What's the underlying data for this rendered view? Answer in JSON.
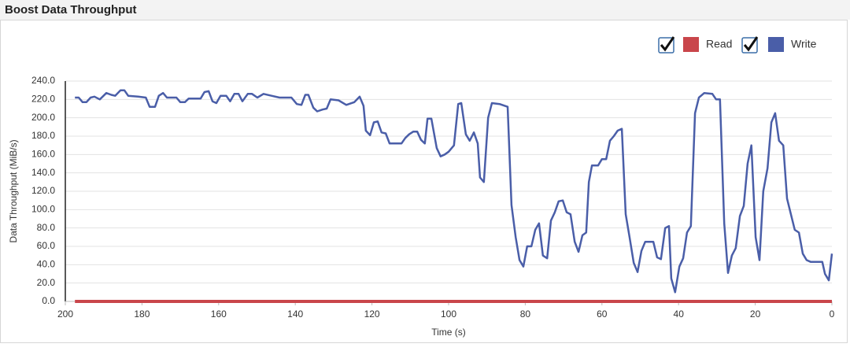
{
  "chart_data": {
    "type": "line",
    "title": "Boost Data Throughput",
    "x_label": "Time (s)",
    "y_label": "Data Throughput (MiB/s)",
    "xlim": [
      200,
      0
    ],
    "xticks": [
      200,
      180,
      160,
      140,
      120,
      100,
      80,
      60,
      40,
      20,
      0
    ],
    "ylim": [
      0,
      240
    ],
    "yticks": [
      {
        "value": 0,
        "label": "0.0"
      },
      {
        "value": 20,
        "label": "20.0"
      },
      {
        "value": 40,
        "label": "40.0"
      },
      {
        "value": 60,
        "label": "60.0"
      },
      {
        "value": 80,
        "label": "80.0"
      },
      {
        "value": 100,
        "label": "100.0"
      },
      {
        "value": 120,
        "label": "120.0"
      },
      {
        "value": 140,
        "label": "140.0"
      },
      {
        "value": 160,
        "label": "160.0"
      },
      {
        "value": 180,
        "label": "180.0"
      },
      {
        "value": 200,
        "label": "200.0"
      },
      {
        "value": 220,
        "label": "220.0"
      },
      {
        "value": 240,
        "label": "240.0"
      }
    ],
    "grid": true,
    "legend": "top-right",
    "x": [
      197.5,
      196.5,
      195.5,
      194.5,
      193.4,
      192.4,
      191,
      189.3,
      188,
      187,
      185.6,
      184.6,
      183.6,
      181,
      179,
      178,
      176.6,
      175.6,
      174.5,
      173.5,
      171,
      170,
      168.8,
      167.8,
      164.7,
      163.7,
      162.6,
      161.6,
      160.6,
      159.5,
      158,
      157,
      155.9,
      154.8,
      153.8,
      152.4,
      151.3,
      149.9,
      148.3,
      146.2,
      144.1,
      141,
      139.6,
      138.4,
      137.4,
      136.6,
      135.3,
      134.3,
      132.9,
      131.8,
      130.8,
      128.7,
      126.7,
      124.6,
      123.2,
      122.2,
      121.6,
      120.5,
      119.5,
      118.5,
      117.5,
      116.4,
      115.4,
      112.3,
      111.3,
      110.3,
      109.2,
      108.2,
      107.2,
      106.2,
      105.5,
      104.5,
      103.1,
      102.1,
      101,
      100,
      98.6,
      97.5,
      96.7,
      95.5,
      94.5,
      93.4,
      92.4,
      91.8,
      90.8,
      89.7,
      88.7,
      86.7,
      84.6,
      83.6,
      82.5,
      81.5,
      80.5,
      79.5,
      78.4,
      77.4,
      76.4,
      75.4,
      74.3,
      73.3,
      72.3,
      71.3,
      70.2,
      69.2,
      68.2,
      67.1,
      66.1,
      65.1,
      64.1,
      63.4,
      62.6,
      61,
      60,
      58.9,
      57.9,
      56.9,
      55.9,
      54.8,
      53.8,
      52.8,
      51.7,
      50.7,
      49.7,
      48.7,
      46.6,
      45.6,
      44.6,
      43.5,
      42.5,
      41.9,
      40.9,
      39.8,
      38.8,
      37.8,
      36.8,
      35.7,
      34.7,
      33.3,
      31.2,
      30.2,
      29.2,
      28.1,
      27.1,
      26.1,
      25.1,
      24,
      23,
      22,
      21,
      19.9,
      18.9,
      17.9,
      16.8,
      15.8,
      14.8,
      13.8,
      12.7,
      11.7,
      10.7,
      9.7,
      8.6,
      7.6,
      6.6,
      5.5,
      2.5,
      1.8,
      0.8,
      0
    ],
    "series": [
      {
        "name": "Read",
        "color": "#c9464b",
        "values": [
          0,
          0,
          0,
          0,
          0,
          0,
          0,
          0,
          0,
          0,
          0,
          0,
          0,
          0,
          0,
          0,
          0,
          0,
          0,
          0,
          0,
          0,
          0,
          0,
          0,
          0,
          0,
          0,
          0,
          0,
          0,
          0,
          0,
          0,
          0,
          0,
          0,
          0,
          0,
          0,
          0,
          0,
          0,
          0,
          0,
          0,
          0,
          0,
          0,
          0,
          0,
          0,
          0,
          0,
          0,
          0,
          0,
          0,
          0,
          0,
          0,
          0,
          0,
          0,
          0,
          0,
          0,
          0,
          0,
          0,
          0,
          0,
          0,
          0,
          0,
          0,
          0,
          0,
          0,
          0,
          0,
          0,
          0,
          0,
          0,
          0,
          0,
          0,
          0,
          0,
          0,
          0,
          0,
          0,
          0,
          0,
          0,
          0,
          0,
          0,
          0,
          0,
          0,
          0,
          0,
          0,
          0,
          0,
          0,
          0,
          0,
          0,
          0,
          0,
          0,
          0,
          0,
          0,
          0,
          0,
          0,
          0,
          0,
          0,
          0,
          0,
          0,
          0,
          0,
          0,
          0,
          0,
          0,
          0,
          0,
          0,
          0,
          0,
          0,
          0,
          0,
          0,
          0,
          0,
          0,
          0,
          0,
          0,
          0,
          0,
          0,
          0,
          0,
          0,
          0,
          0,
          0,
          0,
          0,
          0,
          0,
          0,
          0,
          0,
          0,
          0,
          0,
          0
        ]
      },
      {
        "name": "Write",
        "color": "#4a5ea8",
        "values": [
          222,
          222,
          217,
          217,
          222,
          223,
          220,
          227,
          225,
          224,
          230,
          230,
          224,
          223,
          222,
          212,
          212,
          224,
          227,
          222,
          222,
          217,
          217,
          221,
          221,
          228,
          229,
          218,
          216,
          224,
          224,
          218,
          226,
          226,
          218,
          226,
          226,
          222,
          226,
          224,
          222,
          222,
          215,
          214,
          225,
          225,
          211,
          207,
          209,
          210,
          220,
          219,
          214,
          217,
          223,
          213,
          186,
          181,
          195,
          196,
          184,
          183,
          172,
          172,
          178,
          182,
          185,
          185,
          176,
          172,
          199,
          199,
          167,
          158,
          160,
          163,
          170,
          215,
          216,
          182,
          175,
          184,
          172,
          135,
          130,
          200,
          216,
          215,
          212,
          105,
          70,
          45,
          38,
          60,
          60,
          78,
          85,
          50,
          47,
          88,
          97,
          109,
          110,
          97,
          95,
          65,
          54,
          72,
          75,
          130,
          148,
          148,
          155,
          155,
          175,
          180,
          186,
          188,
          95,
          70,
          42,
          32,
          55,
          65,
          65,
          48,
          46,
          80,
          82,
          25,
          10,
          38,
          47,
          75,
          82,
          205,
          222,
          227,
          226,
          220,
          220,
          85,
          31,
          50,
          58,
          93,
          104,
          150,
          170,
          70,
          45,
          120,
          145,
          195,
          205,
          175,
          170,
          112,
          95,
          78,
          75,
          52,
          45,
          43,
          43,
          30,
          23,
          52
        ]
      }
    ]
  }
}
